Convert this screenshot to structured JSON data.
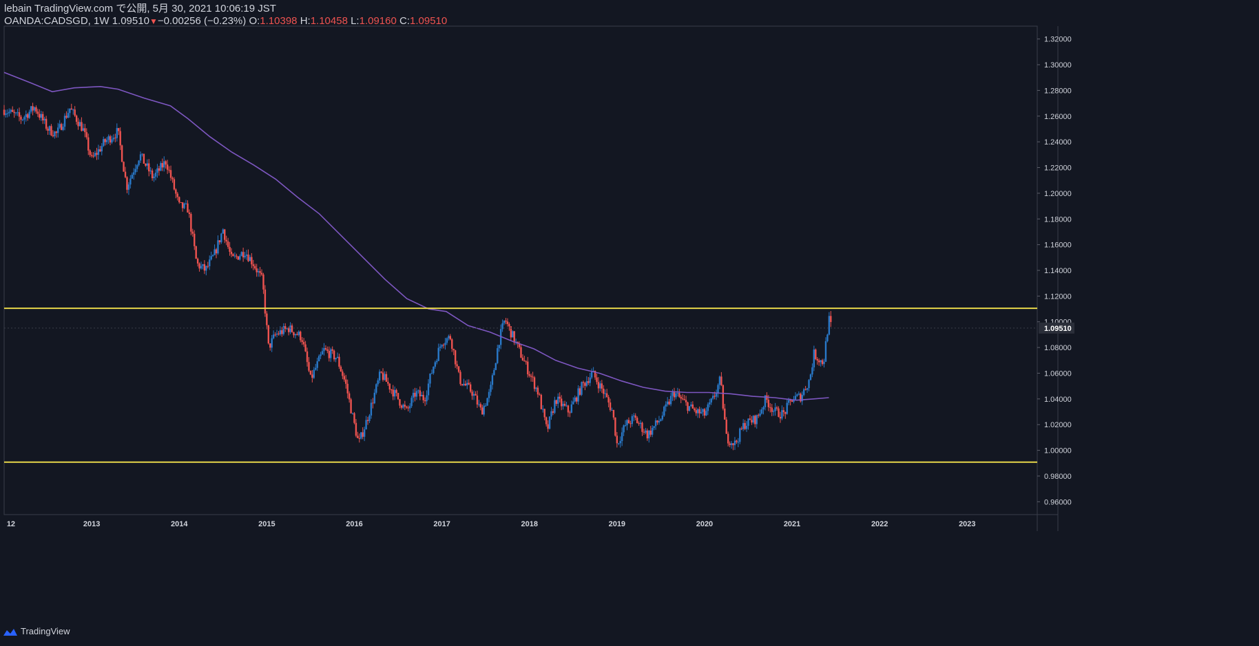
{
  "header": {
    "publisher": "lebain TradingView.com で公開, 5月 30, 2021 10:06:19 JST",
    "symbol": "OANDA:CADSGD, 1W",
    "last": "1.09510",
    "change": "−0.00256 (−0.23%)",
    "o_label": "O:",
    "o_value": "1.10398",
    "h_label": "H:",
    "h_value": "1.10458",
    "l_label": "L:",
    "l_value": "1.09160",
    "c_label": "C:",
    "c_value": "1.09510"
  },
  "footer": {
    "brand": "TradingView"
  },
  "colors": {
    "background": "#131722",
    "up": "#2979c9",
    "down": "#ef5350",
    "ma": "#7e57c2",
    "hline": "#e8d84a",
    "axis_text": "#d1d4dc",
    "price_badge": "#2a2e39"
  },
  "chart_data": {
    "type": "candlestick",
    "symbol": "OANDA:CADSGD",
    "interval": "1W",
    "y_ticks": [
      "1.32000",
      "1.30000",
      "1.28000",
      "1.26000",
      "1.24000",
      "1.22000",
      "1.20000",
      "1.18000",
      "1.16000",
      "1.14000",
      "1.12000",
      "1.10000",
      "1.08000",
      "1.06000",
      "1.04000",
      "1.02000",
      "1.00000",
      "0.98000",
      "0.96000"
    ],
    "x_ticks": [
      "12",
      "2013",
      "2014",
      "2015",
      "2016",
      "2017",
      "2018",
      "2019",
      "2020",
      "2021",
      "2022",
      "2023"
    ],
    "ylim": [
      0.95,
      1.33
    ],
    "xlim": [
      2012.0,
      2023.8
    ],
    "last_price_label": "1.09510",
    "horizontal_lines": [
      1.1105,
      0.9908
    ],
    "price_path": [
      [
        2012.0,
        1.265
      ],
      [
        2012.2,
        1.258
      ],
      [
        2012.35,
        1.267
      ],
      [
        2012.5,
        1.25
      ],
      [
        2012.6,
        1.246
      ],
      [
        2012.75,
        1.266
      ],
      [
        2012.9,
        1.25
      ],
      [
        2013.0,
        1.226
      ],
      [
        2013.15,
        1.24
      ],
      [
        2013.3,
        1.248
      ],
      [
        2013.4,
        1.205
      ],
      [
        2013.55,
        1.23
      ],
      [
        2013.7,
        1.212
      ],
      [
        2013.85,
        1.225
      ],
      [
        2014.0,
        1.19
      ],
      [
        2014.1,
        1.188
      ],
      [
        2014.2,
        1.145
      ],
      [
        2014.3,
        1.14
      ],
      [
        2014.4,
        1.152
      ],
      [
        2014.5,
        1.172
      ],
      [
        2014.6,
        1.148
      ],
      [
        2014.75,
        1.155
      ],
      [
        2014.85,
        1.145
      ],
      [
        2014.95,
        1.132
      ],
      [
        2015.02,
        1.08
      ],
      [
        2015.1,
        1.09
      ],
      [
        2015.25,
        1.095
      ],
      [
        2015.4,
        1.088
      ],
      [
        2015.5,
        1.055
      ],
      [
        2015.65,
        1.078
      ],
      [
        2015.8,
        1.072
      ],
      [
        2015.9,
        1.052
      ],
      [
        2016.0,
        1.02
      ],
      [
        2016.05,
        1.005
      ],
      [
        2016.15,
        1.025
      ],
      [
        2016.3,
        1.06
      ],
      [
        2016.45,
        1.045
      ],
      [
        2016.6,
        1.03
      ],
      [
        2016.7,
        1.045
      ],
      [
        2016.8,
        1.04
      ],
      [
        2016.9,
        1.065
      ],
      [
        2017.0,
        1.085
      ],
      [
        2017.1,
        1.088
      ],
      [
        2017.2,
        1.055
      ],
      [
        2017.35,
        1.045
      ],
      [
        2017.45,
        1.03
      ],
      [
        2017.55,
        1.045
      ],
      [
        2017.65,
        1.085
      ],
      [
        2017.72,
        1.102
      ],
      [
        2017.8,
        1.09
      ],
      [
        2017.9,
        1.075
      ],
      [
        2018.0,
        1.06
      ],
      [
        2018.1,
        1.045
      ],
      [
        2018.2,
        1.015
      ],
      [
        2018.3,
        1.04
      ],
      [
        2018.45,
        1.03
      ],
      [
        2018.6,
        1.05
      ],
      [
        2018.72,
        1.06
      ],
      [
        2018.85,
        1.045
      ],
      [
        2018.95,
        1.03
      ],
      [
        2019.0,
        1.005
      ],
      [
        2019.1,
        1.02
      ],
      [
        2019.2,
        1.025
      ],
      [
        2019.35,
        1.012
      ],
      [
        2019.5,
        1.025
      ],
      [
        2019.65,
        1.045
      ],
      [
        2019.8,
        1.035
      ],
      [
        2019.9,
        1.03
      ],
      [
        2020.0,
        1.028
      ],
      [
        2020.1,
        1.04
      ],
      [
        2020.18,
        1.055
      ],
      [
        2020.25,
        1.01
      ],
      [
        2020.35,
        1.005
      ],
      [
        2020.45,
        1.02
      ],
      [
        2020.6,
        1.025
      ],
      [
        2020.7,
        1.04
      ],
      [
        2020.8,
        1.03
      ],
      [
        2020.9,
        1.028
      ],
      [
        2021.0,
        1.04
      ],
      [
        2021.1,
        1.042
      ],
      [
        2021.2,
        1.055
      ],
      [
        2021.25,
        1.075
      ],
      [
        2021.32,
        1.07
      ],
      [
        2021.36,
        1.068
      ],
      [
        2021.38,
        1.08
      ],
      [
        2021.42,
        1.102
      ],
      [
        2021.45,
        1.095
      ]
    ],
    "ma_path": [
      [
        2012.0,
        1.294
      ],
      [
        2012.3,
        1.286
      ],
      [
        2012.55,
        1.279
      ],
      [
        2012.8,
        1.282
      ],
      [
        2013.1,
        1.283
      ],
      [
        2013.3,
        1.281
      ],
      [
        2013.6,
        1.274
      ],
      [
        2013.9,
        1.268
      ],
      [
        2014.1,
        1.258
      ],
      [
        2014.35,
        1.244
      ],
      [
        2014.6,
        1.232
      ],
      [
        2014.85,
        1.222
      ],
      [
        2015.1,
        1.211
      ],
      [
        2015.35,
        1.197
      ],
      [
        2015.6,
        1.184
      ],
      [
        2015.85,
        1.167
      ],
      [
        2016.1,
        1.15
      ],
      [
        2016.35,
        1.133
      ],
      [
        2016.6,
        1.118
      ],
      [
        2016.85,
        1.11
      ],
      [
        2017.05,
        1.108
      ],
      [
        2017.3,
        1.097
      ],
      [
        2017.55,
        1.092
      ],
      [
        2017.8,
        1.085
      ],
      [
        2018.05,
        1.079
      ],
      [
        2018.3,
        1.07
      ],
      [
        2018.55,
        1.064
      ],
      [
        2018.8,
        1.06
      ],
      [
        2019.05,
        1.054
      ],
      [
        2019.3,
        1.049
      ],
      [
        2019.55,
        1.046
      ],
      [
        2019.8,
        1.045
      ],
      [
        2020.05,
        1.045
      ],
      [
        2020.3,
        1.044
      ],
      [
        2020.55,
        1.042
      ],
      [
        2020.8,
        1.041
      ],
      [
        2021.05,
        1.039
      ],
      [
        2021.25,
        1.04
      ],
      [
        2021.42,
        1.041
      ]
    ]
  }
}
